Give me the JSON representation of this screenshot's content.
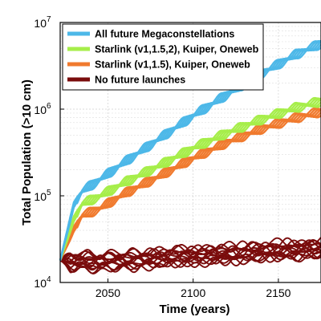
{
  "chart_data": {
    "type": "line",
    "xlabel": "Time (years)",
    "ylabel": "Total Population (>10 cm)",
    "xlim": [
      2022,
      2175
    ],
    "ylim": [
      10000,
      10000000
    ],
    "yscale": "log",
    "grid": true,
    "legend_position": "top-left",
    "x_ticks": [
      "2050",
      "2100",
      "2150"
    ],
    "x_tick_values": [
      2050,
      2100,
      2150
    ],
    "y_ticks": [
      {
        "base": "10",
        "exp": "4",
        "value": 10000
      },
      {
        "base": "10",
        "exp": "5",
        "value": 100000
      },
      {
        "base": "10",
        "exp": "6",
        "value": 1000000
      },
      {
        "base": "10",
        "exp": "7",
        "value": 10000000
      }
    ],
    "series": [
      {
        "name": "All future Megaconstellations",
        "color": "#4db8e8",
        "x": [
          2022,
          2030,
          2035,
          2045,
          2060,
          2080,
          2100,
          2120,
          2140,
          2160,
          2175
        ],
        "y": [
          18000,
          80000,
          115000,
          155000,
          250000,
          460000,
          850000,
          1500000,
          2600000,
          4300000,
          5800000
        ]
      },
      {
        "name": "Starlink (v1,1.5,2), Kuiper, Oneweb",
        "color": "#a6ee4a",
        "x": [
          2022,
          2030,
          2035,
          2045,
          2060,
          2080,
          2100,
          2120,
          2140,
          2160,
          2175
        ],
        "y": [
          18000,
          55000,
          82000,
          100000,
          145000,
          225000,
          360000,
          540000,
          770000,
          1050000,
          1250000
        ]
      },
      {
        "name": "Starlink (v1,1.5), Kuiper, Oneweb",
        "color": "#f07a2e",
        "x": [
          2022,
          2030,
          2035,
          2045,
          2060,
          2080,
          2100,
          2120,
          2140,
          2160,
          2175
        ],
        "y": [
          18000,
          42000,
          60000,
          72000,
          108000,
          170000,
          275000,
          420000,
          600000,
          800000,
          950000
        ]
      },
      {
        "name": "No future launches",
        "color": "#7a0c0c",
        "x": [
          2022,
          2040,
          2060,
          2080,
          2100,
          2120,
          2140,
          2160,
          2175
        ],
        "y": [
          18000,
          17500,
          18000,
          19500,
          20500,
          21500,
          23000,
          24000,
          25000
        ]
      }
    ]
  }
}
